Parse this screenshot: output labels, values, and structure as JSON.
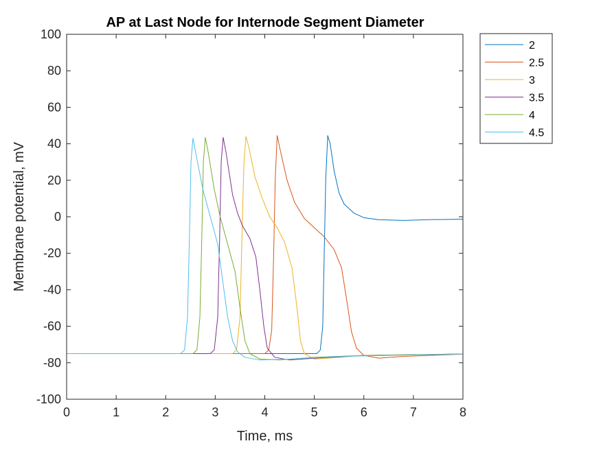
{
  "chart_data": {
    "type": "line",
    "title": "AP at Last Node for Internode Segment Diameter",
    "xlabel": "Time, ms",
    "ylabel": "Membrane potential, mV",
    "xlim": [
      0,
      8
    ],
    "ylim": [
      -100,
      100
    ],
    "xticks": [
      "0",
      "1",
      "2",
      "3",
      "4",
      "5",
      "6",
      "7",
      "8"
    ],
    "yticks": [
      "-100",
      "-80",
      "-60",
      "-40",
      "-20",
      "0",
      "20",
      "40",
      "60",
      "80",
      "100"
    ],
    "grid": false,
    "legend_position": "outside-top-right",
    "series": [
      {
        "name": "2",
        "color": "#0072BD",
        "points": [
          [
            0,
            -75
          ],
          [
            5.05,
            -75
          ],
          [
            5.12,
            -73
          ],
          [
            5.17,
            -60
          ],
          [
            5.2,
            -20
          ],
          [
            5.23,
            20
          ],
          [
            5.27,
            44.5
          ],
          [
            5.32,
            40
          ],
          [
            5.4,
            25
          ],
          [
            5.5,
            13
          ],
          [
            5.6,
            7
          ],
          [
            5.8,
            2
          ],
          [
            6.0,
            -0.5
          ],
          [
            6.3,
            -1.6
          ],
          [
            6.8,
            -2
          ],
          [
            7.3,
            -1.6
          ],
          [
            8.0,
            -1.3
          ]
        ]
      },
      {
        "name": "2.5",
        "color": "#D95319",
        "points": [
          [
            0,
            -75
          ],
          [
            4.0,
            -75
          ],
          [
            4.08,
            -73
          ],
          [
            4.14,
            -62
          ],
          [
            4.18,
            -20
          ],
          [
            4.21,
            20
          ],
          [
            4.25,
            44.5
          ],
          [
            4.3,
            38
          ],
          [
            4.45,
            20
          ],
          [
            4.6,
            8
          ],
          [
            4.8,
            -1
          ],
          [
            5.0,
            -6
          ],
          [
            5.2,
            -11
          ],
          [
            5.4,
            -18
          ],
          [
            5.55,
            -28
          ],
          [
            5.65,
            -45
          ],
          [
            5.75,
            -63
          ],
          [
            5.85,
            -72
          ],
          [
            6.0,
            -76
          ],
          [
            6.3,
            -77.5
          ],
          [
            6.8,
            -76.5
          ],
          [
            7.5,
            -75.8
          ],
          [
            8.0,
            -75.3
          ]
        ]
      },
      {
        "name": "3",
        "color": "#EDB120",
        "points": [
          [
            0,
            -75
          ],
          [
            3.35,
            -75
          ],
          [
            3.43,
            -73
          ],
          [
            3.5,
            -55
          ],
          [
            3.54,
            -10
          ],
          [
            3.58,
            30
          ],
          [
            3.62,
            44
          ],
          [
            3.68,
            38
          ],
          [
            3.8,
            22
          ],
          [
            3.95,
            10
          ],
          [
            4.1,
            0
          ],
          [
            4.25,
            -6
          ],
          [
            4.4,
            -14
          ],
          [
            4.55,
            -28
          ],
          [
            4.65,
            -50
          ],
          [
            4.72,
            -68
          ],
          [
            4.8,
            -75
          ],
          [
            5.0,
            -78
          ],
          [
            5.5,
            -77
          ],
          [
            6.0,
            -76
          ],
          [
            7.0,
            -75.5
          ],
          [
            8.0,
            -75.2
          ]
        ]
      },
      {
        "name": "3.5",
        "color": "#7E2F8E",
        "points": [
          [
            0,
            -75
          ],
          [
            2.9,
            -75
          ],
          [
            2.98,
            -73
          ],
          [
            3.05,
            -55
          ],
          [
            3.09,
            -10
          ],
          [
            3.12,
            30
          ],
          [
            3.16,
            43.5
          ],
          [
            3.22,
            35
          ],
          [
            3.35,
            12
          ],
          [
            3.45,
            2
          ],
          [
            3.55,
            -5
          ],
          [
            3.7,
            -12
          ],
          [
            3.82,
            -22
          ],
          [
            3.9,
            -40
          ],
          [
            3.98,
            -60
          ],
          [
            4.05,
            -72
          ],
          [
            4.2,
            -77
          ],
          [
            4.5,
            -78.5
          ],
          [
            5.0,
            -77.5
          ],
          [
            6.0,
            -76
          ],
          [
            8.0,
            -75.2
          ]
        ]
      },
      {
        "name": "4",
        "color": "#77AC30",
        "points": [
          [
            0,
            -75
          ],
          [
            2.55,
            -75
          ],
          [
            2.63,
            -73
          ],
          [
            2.69,
            -55
          ],
          [
            2.73,
            -10
          ],
          [
            2.76,
            30
          ],
          [
            2.8,
            43.5
          ],
          [
            2.86,
            35
          ],
          [
            2.98,
            15
          ],
          [
            3.1,
            0
          ],
          [
            3.25,
            -15
          ],
          [
            3.4,
            -30
          ],
          [
            3.5,
            -50
          ],
          [
            3.6,
            -68
          ],
          [
            3.7,
            -75
          ],
          [
            3.9,
            -78
          ],
          [
            4.3,
            -78.5
          ],
          [
            5.0,
            -77
          ],
          [
            6.0,
            -76
          ],
          [
            8.0,
            -75.2
          ]
        ]
      },
      {
        "name": "4.5",
        "color": "#4DBEEE",
        "points": [
          [
            0,
            -75
          ],
          [
            2.3,
            -75
          ],
          [
            2.38,
            -73
          ],
          [
            2.44,
            -55
          ],
          [
            2.48,
            -10
          ],
          [
            2.51,
            30
          ],
          [
            2.55,
            43
          ],
          [
            2.62,
            33
          ],
          [
            2.75,
            15
          ],
          [
            2.9,
            0
          ],
          [
            3.05,
            -15
          ],
          [
            3.15,
            -35
          ],
          [
            3.25,
            -55
          ],
          [
            3.35,
            -68
          ],
          [
            3.45,
            -74
          ],
          [
            3.6,
            -77
          ],
          [
            3.9,
            -78.5
          ],
          [
            4.5,
            -78
          ],
          [
            5.5,
            -76.5
          ],
          [
            8.0,
            -75.2
          ]
        ]
      }
    ]
  }
}
